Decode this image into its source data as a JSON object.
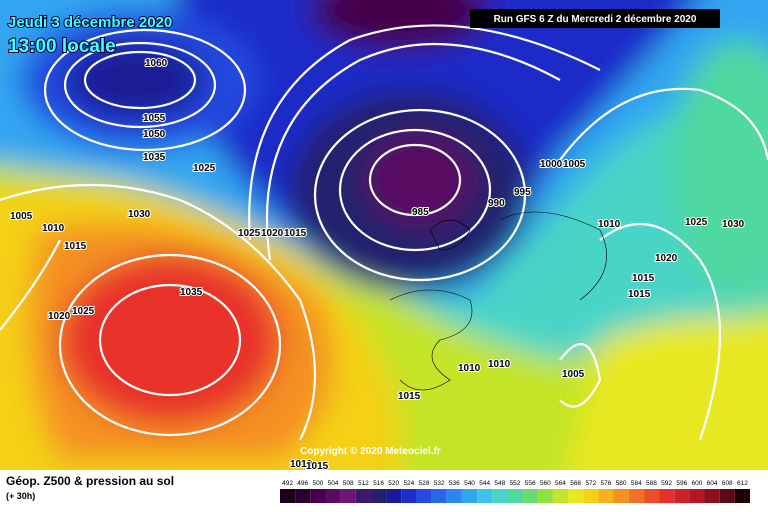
{
  "header": {
    "date": "Jeudi 3 décembre 2020",
    "time": "13:00 locale",
    "run": "Run GFS 6 Z du Mercredi 2 décembre 2020"
  },
  "copyright": "Copyright © 2020 Meteociel.fr",
  "footer": {
    "title": "Géop. Z500 & pression au sol",
    "subtitle": "(+ 30h)"
  },
  "isobar_labels": [
    1060,
    1055,
    1050,
    1035,
    1025,
    1030,
    1005,
    1010,
    1015,
    1020,
    1025,
    1035,
    1025,
    1020,
    1015,
    985,
    990,
    995,
    1000,
    1005,
    1010,
    1015,
    1015,
    1020,
    1025,
    1030,
    1010,
    1010,
    1005,
    1015,
    1010,
    1015
  ],
  "scale": {
    "values": [
      492,
      496,
      500,
      504,
      508,
      512,
      516,
      520,
      524,
      528,
      532,
      536,
      540,
      544,
      548,
      552,
      556,
      560,
      564,
      568,
      572,
      576,
      580,
      584,
      588,
      592,
      596,
      600,
      604,
      608,
      612
    ],
    "colors": [
      "#1a0018",
      "#2e0032",
      "#44004a",
      "#5a0a62",
      "#6c1478",
      "#3c1a6a",
      "#24206e",
      "#1a1a96",
      "#1e2cc8",
      "#2448e0",
      "#2a66ec",
      "#2c86f0",
      "#30a6f0",
      "#3cc4e8",
      "#48d4c8",
      "#50d8a0",
      "#68dc70",
      "#90e040",
      "#c4e428",
      "#e8e820",
      "#f4d018",
      "#f6b01a",
      "#f49020",
      "#f07024",
      "#ec5028",
      "#e8302c",
      "#d0202a",
      "#b01826",
      "#8a1020",
      "#5c0a14",
      "#200004"
    ]
  }
}
